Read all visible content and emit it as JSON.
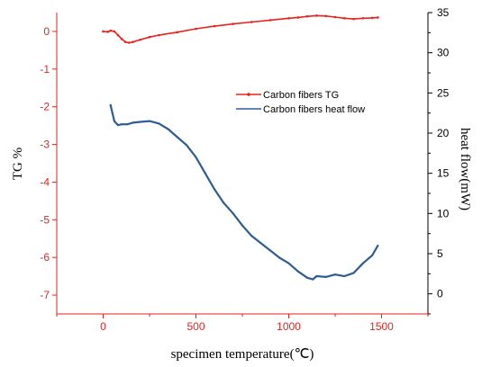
{
  "chart_data": {
    "type": "line",
    "xlabel": "specimen temperature(℃)",
    "ylabel_left": "TG %",
    "ylabel_right": "heat flow(mW)",
    "x_ticks": [
      "0",
      "500",
      "1000",
      "1500"
    ],
    "y_left_ticks": [
      "0",
      "-1",
      "-2",
      "-3",
      "-4",
      "-5",
      "-6",
      "-7"
    ],
    "y_right_ticks": [
      "0",
      "5",
      "10",
      "15",
      "20",
      "25",
      "30",
      "35"
    ],
    "xlim": [
      -250,
      1750
    ],
    "ylim_left": [
      -7.5,
      0.5
    ],
    "ylim_right": [
      -2.5,
      35
    ],
    "legend_position": "upper-right",
    "series": [
      {
        "name": "Carbon fibers TG",
        "axis": "left",
        "color": "#e8231e",
        "marker": "dot",
        "x": [
          0,
          25,
          40,
          60,
          80,
          100,
          120,
          140,
          160,
          200,
          250,
          300,
          400,
          500,
          600,
          700,
          800,
          900,
          1000,
          1050,
          1100,
          1150,
          1200,
          1250,
          1300,
          1350,
          1400,
          1450,
          1480
        ],
        "y": [
          0.0,
          -0.01,
          0.02,
          0.0,
          -0.1,
          -0.2,
          -0.28,
          -0.3,
          -0.28,
          -0.22,
          -0.15,
          -0.1,
          -0.02,
          0.07,
          0.14,
          0.2,
          0.25,
          0.3,
          0.35,
          0.37,
          0.4,
          0.42,
          0.41,
          0.38,
          0.35,
          0.33,
          0.35,
          0.36,
          0.37
        ]
      },
      {
        "name": "Carbon fibers heat flow",
        "axis": "right",
        "color": "#2f5c95",
        "x": [
          40,
          50,
          60,
          80,
          100,
          130,
          160,
          200,
          250,
          300,
          350,
          400,
          450,
          500,
          550,
          600,
          650,
          700,
          750,
          800,
          850,
          900,
          950,
          1000,
          1050,
          1100,
          1130,
          1150,
          1200,
          1250,
          1300,
          1350,
          1400,
          1450,
          1480
        ],
        "y": [
          23.5,
          22.5,
          21.5,
          21.0,
          21.1,
          21.1,
          21.3,
          21.4,
          21.5,
          21.2,
          20.5,
          19.5,
          18.5,
          17.0,
          15.0,
          13.0,
          11.3,
          10.0,
          8.5,
          7.2,
          6.3,
          5.4,
          4.5,
          3.8,
          2.8,
          2.0,
          1.8,
          2.2,
          2.1,
          2.4,
          2.2,
          2.6,
          3.8,
          4.8,
          6.0
        ]
      }
    ]
  }
}
